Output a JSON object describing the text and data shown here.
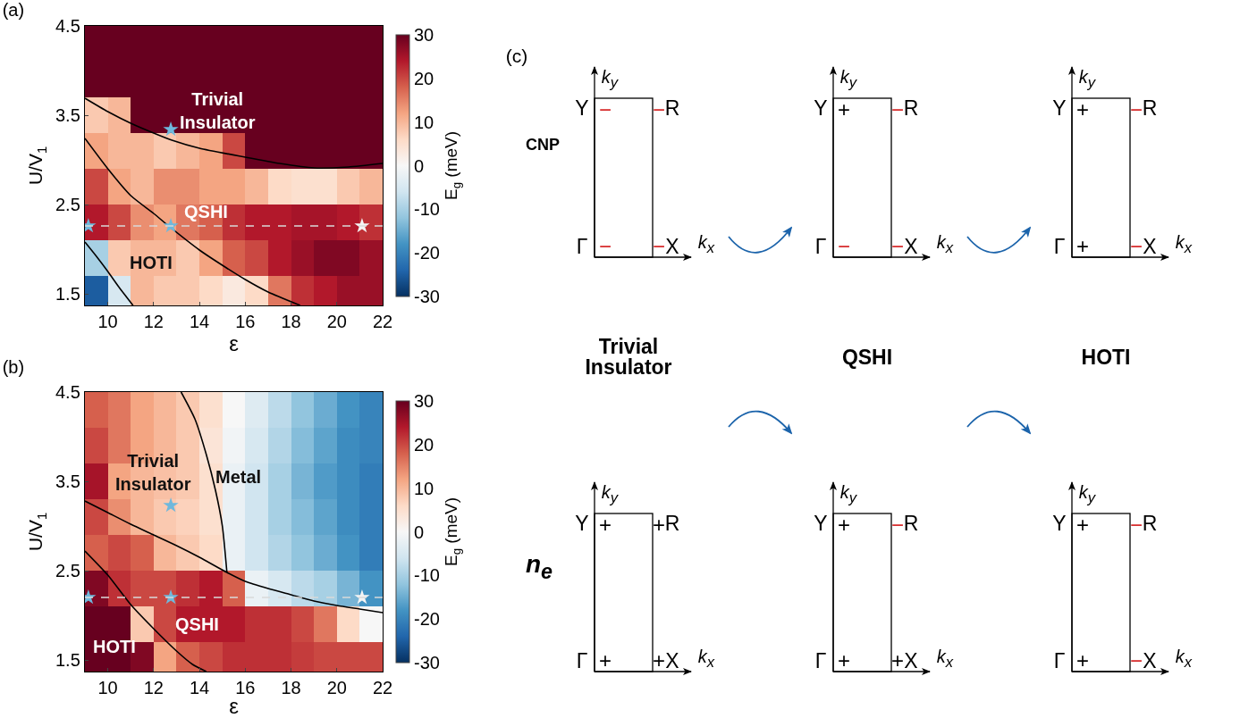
{
  "chart_data": [
    {
      "type": "heatmap",
      "title": "(a)",
      "xlabel": "ε",
      "ylabel": "U/V$_{1}$",
      "clabel": "E$_{g}$ (meV)",
      "x": [
        9.5,
        10.5,
        11.5,
        12.5,
        13.5,
        14.5,
        15.5,
        16.5,
        17.5,
        18.5,
        19.5,
        20.5,
        21.5
      ],
      "y": [
        4.3,
        3.9,
        3.5,
        3.1,
        2.7,
        2.3,
        1.9,
        1.5
      ],
      "cells": [
        [
          30,
          30,
          30,
          30,
          30,
          30,
          30,
          30,
          30,
          30,
          30,
          30,
          30
        ],
        [
          30,
          30,
          30,
          30,
          30,
          30,
          30,
          30,
          30,
          30,
          30,
          30,
          30
        ],
        [
          8,
          10,
          30,
          30,
          30,
          30,
          30,
          30,
          30,
          30,
          30,
          30,
          30
        ],
        [
          12,
          10,
          10,
          8,
          10,
          12,
          20,
          30,
          30,
          30,
          30,
          30,
          30
        ],
        [
          20,
          12,
          10,
          14,
          14,
          12,
          12,
          10,
          6,
          5,
          5,
          8,
          10
        ],
        [
          24,
          20,
          14,
          12,
          16,
          18,
          22,
          24,
          24,
          25,
          25,
          24,
          22
        ],
        [
          -10,
          8,
          10,
          10,
          8,
          12,
          18,
          20,
          24,
          26,
          28,
          28,
          26
        ],
        [
          -25,
          -5,
          10,
          8,
          8,
          6,
          3,
          6,
          16,
          22,
          24,
          26,
          26
        ]
      ],
      "clim": [
        -30,
        30
      ],
      "cticks": [
        -30,
        -20,
        -10,
        0,
        10,
        20,
        30
      ],
      "xlim": [
        9,
        22
      ],
      "xticks": [
        10,
        12,
        14,
        16,
        18,
        20,
        22
      ],
      "ylim": [
        1.37,
        4.5
      ],
      "yticks": [
        1.5,
        2.5,
        3.5,
        4.5
      ],
      "series": [
        {
          "type": "line",
          "color": "#000000",
          "x": [
            9,
            10,
            11,
            12,
            12.8,
            14,
            16,
            17.5,
            19,
            20.5,
            22
          ],
          "values": [
            3.69,
            3.54,
            3.41,
            3.3,
            3.22,
            3.13,
            3.03,
            2.96,
            2.91,
            2.92,
            2.96
          ]
        },
        {
          "type": "line",
          "color": "#000000",
          "x": [
            9,
            10,
            11,
            12,
            12.7,
            14,
            15,
            16,
            17,
            18.4
          ],
          "values": [
            3.24,
            2.9,
            2.6,
            2.4,
            2.25,
            1.99,
            1.82,
            1.66,
            1.52,
            1.37
          ]
        },
        {
          "type": "line",
          "color": "#000000",
          "x": [
            9,
            9.5,
            10,
            10.5,
            11.1
          ],
          "values": [
            2.08,
            1.92,
            1.75,
            1.57,
            1.37
          ]
        },
        {
          "type": "scatter",
          "marker": "star",
          "x": [
            9.15,
            12.75,
            21.1,
            12.75
          ],
          "values": [
            2.26,
            2.26,
            2.26,
            3.34
          ],
          "colors": [
            "#6fb8dc",
            "#6fb8dc",
            "#f4f4f4",
            "#6fb8dc"
          ]
        }
      ],
      "ref_lines": [
        {
          "axis": "y",
          "value": 2.26,
          "color": "#d9d9d9",
          "line_style": "dashed"
        }
      ],
      "annotations": [
        "Trivial Insulator",
        "QSHI",
        "HOTI"
      ]
    },
    {
      "type": "heatmap",
      "title": "(b)",
      "xlabel": "ε",
      "ylabel": "U/V$_{1}$",
      "clabel": "E$_{g}$ (meV)",
      "x": [
        9.5,
        10.5,
        11.5,
        12.5,
        13.5,
        14.5,
        15.5,
        16.5,
        17.5,
        18.5,
        19.5,
        20.5,
        21.5
      ],
      "y": [
        4.3,
        3.9,
        3.5,
        3.1,
        2.7,
        2.3,
        1.9,
        1.5
      ],
      "cells": [
        [
          18,
          16,
          12,
          10,
          8,
          5,
          0,
          -4,
          -8,
          -12,
          -15,
          -18,
          -20
        ],
        [
          20,
          16,
          12,
          10,
          8,
          4,
          -1,
          -5,
          -9,
          -13,
          -16,
          -19,
          -20
        ],
        [
          25,
          12,
          10,
          9,
          8,
          5,
          -2,
          -6,
          -10,
          -14,
          -17,
          -19,
          -21
        ],
        [
          20,
          14,
          10,
          8,
          7,
          5,
          -2,
          -6,
          -10,
          -13,
          -16,
          -19,
          -21
        ],
        [
          18,
          20,
          18,
          10,
          8,
          6,
          -2,
          -6,
          -9,
          -12,
          -15,
          -18,
          -21
        ],
        [
          28,
          22,
          20,
          20,
          22,
          24,
          18,
          -2,
          -5,
          -8,
          -10,
          -14,
          -18
        ],
        [
          30,
          30,
          8,
          20,
          24,
          24,
          24,
          22,
          22,
          20,
          16,
          6,
          0
        ],
        [
          30,
          30,
          28,
          12,
          18,
          20,
          22,
          22,
          22,
          21,
          20,
          20,
          20
        ]
      ],
      "clim": [
        -30,
        30
      ],
      "cticks": [
        -30,
        -20,
        -10,
        0,
        10,
        20,
        30
      ],
      "xlim": [
        9,
        22
      ],
      "xticks": [
        10,
        12,
        14,
        16,
        18,
        20,
        22
      ],
      "ylim": [
        1.37,
        4.5
      ],
      "yticks": [
        1.5,
        2.5,
        3.5,
        4.5
      ],
      "series": [
        {
          "type": "line",
          "color": "#000000",
          "x": [
            9,
            10,
            11,
            12,
            13,
            14,
            15.2,
            16,
            17,
            18,
            19,
            20,
            21,
            22
          ],
          "values": [
            3.28,
            3.15,
            3.02,
            2.9,
            2.78,
            2.65,
            2.48,
            2.38,
            2.3,
            2.23,
            2.16,
            2.11,
            2.07,
            2.03
          ]
        },
        {
          "type": "line",
          "color": "#000000",
          "x": [
            13.2,
            13.8,
            14.3,
            14.7,
            15,
            15.2
          ],
          "values": [
            4.5,
            4.2,
            3.8,
            3.4,
            3,
            2.48
          ]
        },
        {
          "type": "line",
          "color": "#000000",
          "x": [
            9,
            10,
            11,
            12,
            13,
            13.7,
            14.3
          ],
          "values": [
            2.72,
            2.45,
            2.12,
            1.85,
            1.6,
            1.45,
            1.37
          ]
        },
        {
          "type": "scatter",
          "marker": "star",
          "x": [
            9.15,
            12.75,
            21.1,
            12.75
          ],
          "values": [
            2.2,
            2.2,
            2.2,
            3.23
          ],
          "colors": [
            "#6fb8dc",
            "#6fb8dc",
            "#f4f4f4",
            "#6fb8dc"
          ]
        }
      ],
      "ref_lines": [
        {
          "axis": "y",
          "value": 2.2,
          "color": "#d9d9d9",
          "line_style": "dashed"
        }
      ],
      "annotations": [
        "Trivial Insulator",
        "Metal",
        "QSHI",
        "HOTI"
      ]
    },
    {
      "type": "other",
      "title": "(c)",
      "categories": [
        "Trivial Insulator",
        "QSHI",
        "HOTI"
      ],
      "y_categories": [
        "CNP",
        "n$_{e}$"
      ],
      "colors": [
        [
          [
            "#d62728",
            "#d62728",
            "#d62728",
            "#d62728"
          ],
          [
            "#000000",
            "#d62728",
            "#d62728",
            "#d62728"
          ],
          [
            "#000000",
            "#d62728",
            "#000000",
            "#d62728"
          ]
        ],
        [
          [
            "#000000",
            "#000000",
            "#000000",
            "#000000"
          ],
          [
            "#000000",
            "#d62728",
            "#000000",
            "#000000"
          ],
          [
            "#000000",
            "#d62728",
            "#000000",
            "#d62728"
          ]
        ]
      ],
      "cell_labels": [
        [
          [
            "−",
            "−",
            "−",
            "−"
          ],
          [
            "+",
            "−",
            "−",
            "−"
          ],
          [
            "+",
            "−",
            "+",
            "−"
          ]
        ],
        [
          [
            "+",
            "+",
            "+",
            "+"
          ],
          [
            "+",
            "−",
            "+",
            "+"
          ],
          [
            "+",
            "−",
            "+",
            "−"
          ]
        ]
      ],
      "annotations": [
        "k$_{y}$",
        "k$_{x}$",
        "Y",
        "R",
        "Γ",
        "X"
      ]
    }
  ]
}
